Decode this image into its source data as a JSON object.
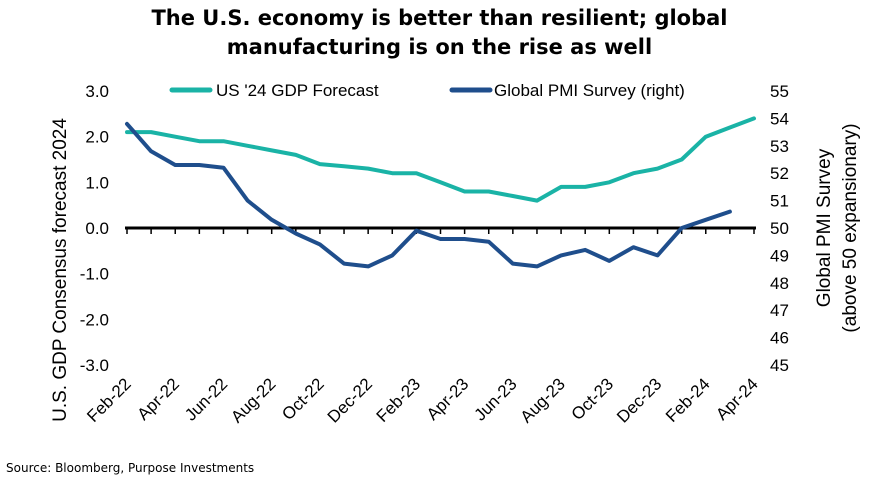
{
  "title": {
    "line1": "The U.S. economy is better than resilient; global",
    "line2": "manufacturing is on the rise as well"
  },
  "source": "Source: Bloomberg, Purpose Investments",
  "colors": {
    "gdp": "#1ab3a6",
    "pmi": "#1f4e8c",
    "zero_line": "#000000"
  },
  "chart_data": {
    "type": "line",
    "x": [
      "Feb-22",
      "Mar-22",
      "Apr-22",
      "May-22",
      "Jun-22",
      "Jul-22",
      "Aug-22",
      "Sep-22",
      "Oct-22",
      "Nov-22",
      "Dec-22",
      "Jan-23",
      "Feb-23",
      "Mar-23",
      "Apr-23",
      "May-23",
      "Jun-23",
      "Jul-23",
      "Aug-23",
      "Sep-23",
      "Oct-23",
      "Nov-23",
      "Dec-23",
      "Jan-24",
      "Feb-24",
      "Mar-24",
      "Apr-24"
    ],
    "x_tick_labels": [
      "Feb-22",
      "Apr-22",
      "Jun-22",
      "Aug-22",
      "Oct-22",
      "Dec-22",
      "Feb-23",
      "Apr-23",
      "Jun-23",
      "Aug-23",
      "Oct-23",
      "Dec-23",
      "Feb-24",
      "Apr-24"
    ],
    "series": [
      {
        "name": "US '24 GDP Forecast",
        "axis": "left",
        "color": "#1ab3a6",
        "values": [
          2.1,
          2.1,
          2.0,
          1.9,
          1.9,
          1.8,
          1.7,
          1.6,
          1.4,
          1.35,
          1.3,
          1.2,
          1.2,
          1.0,
          0.8,
          0.8,
          0.7,
          0.6,
          0.9,
          0.9,
          1.0,
          1.2,
          1.3,
          1.5,
          2.0,
          2.2,
          2.4
        ]
      },
      {
        "name": "Global PMI Survey (right)",
        "axis": "right",
        "color": "#1f4e8c",
        "values": [
          53.8,
          52.8,
          52.3,
          52.3,
          52.2,
          51.0,
          50.3,
          49.8,
          49.4,
          48.7,
          48.6,
          49.0,
          49.9,
          49.6,
          49.6,
          49.5,
          48.7,
          48.6,
          49.0,
          49.2,
          48.8,
          49.3,
          49.0,
          50.0,
          50.3,
          50.6,
          null
        ]
      }
    ],
    "ylabel": "U.S. GDP Consensus forecast 2024",
    "y2label_line1": "Global PMI Survey",
    "y2label_line2": "(above 50 expansionary)",
    "ylim": [
      -3.0,
      3.0
    ],
    "y_ticks": [
      "3.0",
      "2.0",
      "1.0",
      "0.0",
      "-1.0",
      "-2.0",
      "-3.0"
    ],
    "y2lim": [
      45,
      55
    ],
    "y2_ticks": [
      "55",
      "54",
      "53",
      "52",
      "51",
      "50",
      "49",
      "48",
      "47",
      "46",
      "45"
    ],
    "legend_position": "top",
    "grid": false
  }
}
